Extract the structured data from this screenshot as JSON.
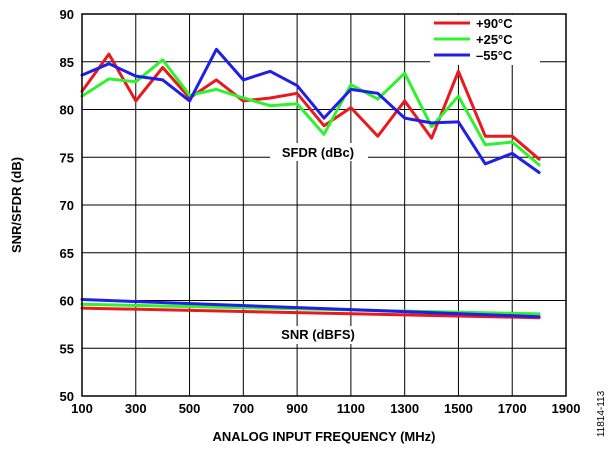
{
  "chart_data": {
    "type": "line",
    "xlabel": "ANALOG INPUT FREQUENCY (MHz)",
    "ylabel": "SNR/SFDR (dB)",
    "xlim": [
      100,
      1900
    ],
    "ylim": [
      50,
      90
    ],
    "x_ticks": [
      "100",
      "300",
      "500",
      "700",
      "900",
      "1100",
      "1300",
      "1500",
      "1700",
      "1900"
    ],
    "y_ticks": [
      "50",
      "55",
      "60",
      "65",
      "70",
      "75",
      "80",
      "85",
      "90"
    ],
    "grid": true,
    "legend_position": "top-right",
    "annotations": {
      "sfdr": "SFDR (dBc)",
      "snr": "SNR (dBFS)"
    },
    "figure_id": "11814-113",
    "series": [
      {
        "name": "+90°C",
        "color": "#e8191f",
        "metric": "SFDR",
        "x": [
          100,
          200,
          300,
          400,
          500,
          600,
          700,
          800,
          900,
          1000,
          1100,
          1200,
          1300,
          1400,
          1500,
          1600,
          1700,
          1800
        ],
        "y": [
          81.9,
          85.8,
          80.9,
          84.4,
          81.2,
          83.1,
          80.9,
          81.2,
          81.7,
          78.3,
          80.2,
          77.2,
          80.9,
          77.0,
          84.0,
          77.2,
          77.2,
          74.8
        ]
      },
      {
        "name": "+25°C",
        "color": "#2ef22e",
        "metric": "SFDR",
        "x": [
          100,
          200,
          300,
          400,
          500,
          600,
          700,
          800,
          900,
          1000,
          1100,
          1200,
          1300,
          1400,
          1500,
          1600,
          1700,
          1800
        ],
        "y": [
          81.4,
          83.2,
          82.9,
          85.2,
          81.5,
          82.1,
          81.2,
          80.4,
          80.6,
          77.4,
          82.6,
          81.1,
          83.8,
          78.2,
          81.4,
          76.3,
          76.6,
          74.2
        ]
      },
      {
        "name": "–55°C",
        "color": "#1f1fe6",
        "metric": "SFDR",
        "x": [
          100,
          200,
          300,
          400,
          500,
          600,
          700,
          800,
          900,
          1000,
          1100,
          1200,
          1300,
          1400,
          1500,
          1600,
          1700,
          1800
        ],
        "y": [
          83.6,
          84.8,
          83.5,
          83.1,
          80.9,
          86.3,
          83.1,
          84.0,
          82.5,
          79.1,
          82.1,
          81.7,
          79.1,
          78.6,
          78.7,
          74.3,
          75.4,
          73.4
        ]
      },
      {
        "name": "+90°C",
        "color": "#e8191f",
        "metric": "SNR",
        "x": [
          100,
          1800
        ],
        "y": [
          59.2,
          58.2
        ]
      },
      {
        "name": "+25°C",
        "color": "#2ef22e",
        "metric": "SNR",
        "x": [
          100,
          1800
        ],
        "y": [
          59.6,
          58.6
        ]
      },
      {
        "name": "–55°C",
        "color": "#1f1fe6",
        "metric": "SNR",
        "x": [
          100,
          1800
        ],
        "y": [
          60.1,
          58.3
        ]
      }
    ]
  }
}
